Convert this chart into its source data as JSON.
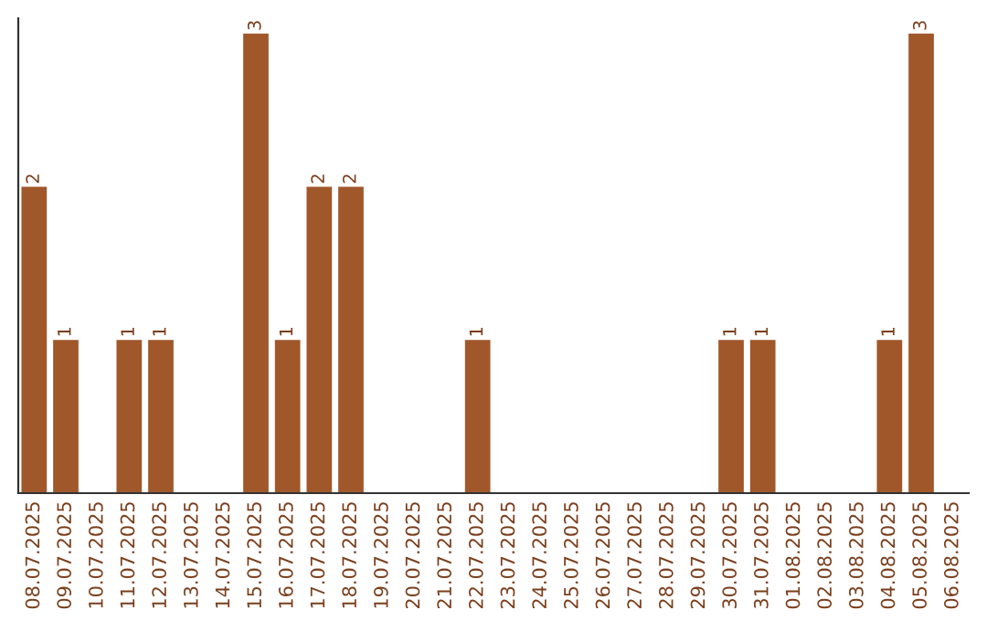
{
  "chart_data": {
    "type": "bar",
    "categories": [
      "08.07.2025",
      "09.07.2025",
      "10.07.2025",
      "11.07.2025",
      "12.07.2025",
      "13.07.2025",
      "14.07.2025",
      "15.07.2025",
      "16.07.2025",
      "17.07.2025",
      "18.07.2025",
      "19.07.2025",
      "20.07.2025",
      "21.07.2025",
      "22.07.2025",
      "23.07.2025",
      "24.07.2025",
      "25.07.2025",
      "26.07.2025",
      "27.07.2025",
      "28.07.2025",
      "29.07.2025",
      "30.07.2025",
      "31.07.2025",
      "01.08.2025",
      "02.08.2025",
      "03.08.2025",
      "04.08.2025",
      "05.08.2025",
      "06.08.2025"
    ],
    "values": [
      2,
      1,
      0,
      1,
      1,
      0,
      0,
      3,
      1,
      2,
      2,
      0,
      0,
      0,
      1,
      0,
      0,
      0,
      0,
      0,
      0,
      0,
      1,
      1,
      0,
      0,
      0,
      1,
      3,
      0
    ],
    "value_labels": [
      "2",
      "1",
      null,
      "1",
      "1",
      null,
      null,
      "3",
      "1",
      "2",
      "2",
      null,
      null,
      null,
      "1",
      null,
      null,
      null,
      null,
      null,
      null,
      null,
      "1",
      "1",
      null,
      null,
      null,
      "1",
      "3",
      null
    ],
    "color": "#a0572a",
    "ylim": [
      0,
      3.1
    ],
    "tick_labels": "x",
    "grid": false,
    "legend": false
  }
}
